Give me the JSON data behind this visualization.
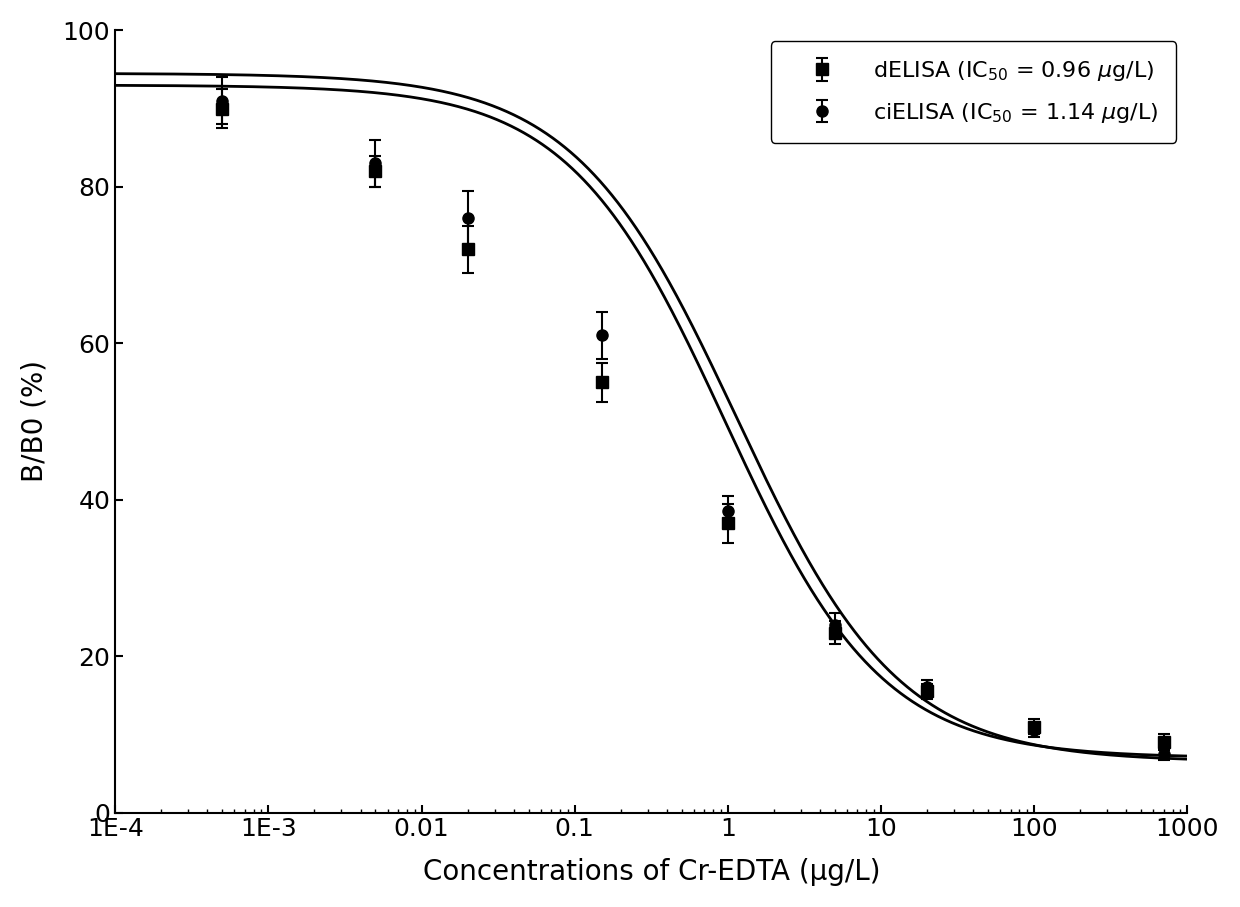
{
  "title": "",
  "xlabel": "Concentrations of Cr-EDTA (μg/L)",
  "ylabel": "B/B0 (%)",
  "xlim": [
    0.0001,
    1000
  ],
  "ylim": [
    0,
    100
  ],
  "background_color": "#ffffff",
  "series": [
    {
      "name": "dELISA",
      "ic50_label": "0.96",
      "x": [
        0.0005,
        0.005,
        0.02,
        0.15,
        1.0,
        5.0,
        20.0,
        100.0,
        700.0
      ],
      "y": [
        90.0,
        82.0,
        72.0,
        55.0,
        37.0,
        23.0,
        15.5,
        11.0,
        9.0
      ],
      "yerr": [
        2.5,
        2.0,
        3.0,
        2.5,
        2.5,
        1.5,
        1.0,
        1.0,
        1.0
      ],
      "marker": "s",
      "color": "#000000",
      "linestyle": "-",
      "markersize": 8,
      "fit_ic50": 0.96,
      "fit_hill": 0.85,
      "fit_top": 93.0,
      "fit_bottom": 7.0
    },
    {
      "name": "ciELISA",
      "ic50_label": "1.14",
      "x": [
        0.0005,
        0.005,
        0.02,
        0.15,
        1.0,
        5.0,
        20.0,
        100.0,
        700.0
      ],
      "y": [
        91.0,
        83.0,
        76.0,
        61.0,
        38.5,
        24.0,
        16.0,
        10.5,
        7.5
      ],
      "yerr": [
        3.0,
        3.0,
        3.5,
        3.0,
        2.0,
        1.5,
        1.0,
        0.8,
        0.8
      ],
      "marker": "o",
      "color": "#000000",
      "linestyle": "-",
      "markersize": 8,
      "fit_ic50": 1.14,
      "fit_hill": 0.82,
      "fit_top": 94.5,
      "fit_bottom": 6.5
    }
  ],
  "xtick_positions": [
    0.0001,
    0.001,
    0.01,
    0.1,
    1.0,
    10.0,
    100.0,
    1000.0
  ],
  "xtick_labels": [
    "1E-4",
    "1E-3",
    "0.01",
    "0.1",
    "1",
    "10",
    "100",
    "1000"
  ],
  "ytick_positions": [
    0,
    20,
    40,
    60,
    80,
    100
  ],
  "ytick_labels": [
    "0",
    "20",
    "40",
    "60",
    "80",
    "100"
  ],
  "legend_loc": "upper right",
  "tick_fontsize": 18,
  "label_fontsize": 20,
  "legend_fontsize": 16,
  "linewidth": 2.0,
  "figure_width": 12.4,
  "figure_height": 9.07,
  "dpi": 100
}
